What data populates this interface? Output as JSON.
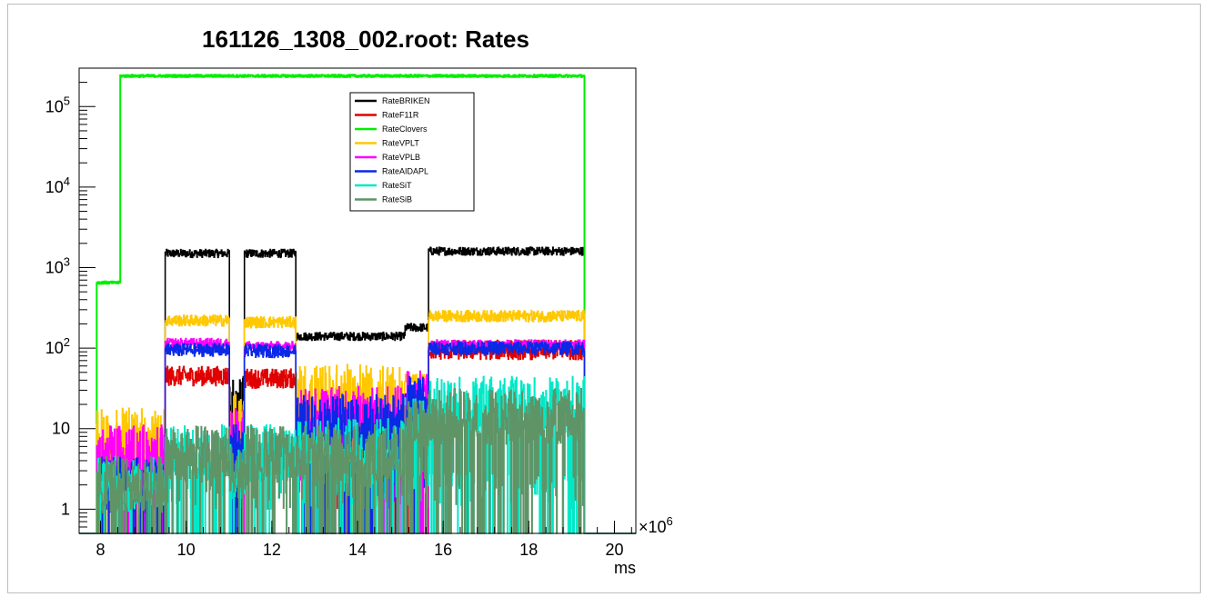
{
  "chart_data": {
    "type": "line",
    "title": "161126_1308_002.root: Rates",
    "xlabel": "ms",
    "x_multiplier_label": "×10",
    "x_multiplier_exp": "6",
    "xlim": [
      7.5,
      20.5
    ],
    "ylim": [
      0.5,
      300000
    ],
    "y_scale": "log",
    "x_ticks": [
      8,
      10,
      12,
      14,
      16,
      18,
      20
    ],
    "y_ticks": [
      {
        "value": 1,
        "base": "1",
        "exp": ""
      },
      {
        "value": 10,
        "base": "10",
        "exp": ""
      },
      {
        "value": 100,
        "base": "10",
        "exp": "2"
      },
      {
        "value": 1000,
        "base": "10",
        "exp": "3"
      },
      {
        "value": 10000,
        "base": "10",
        "exp": "4"
      },
      {
        "value": 100000,
        "base": "10",
        "exp": "5"
      }
    ],
    "legend_position": "top-center",
    "segments": [
      [
        7.5,
        7.9
      ],
      [
        7.9,
        8.45
      ],
      [
        8.45,
        9.5
      ],
      [
        9.5,
        11.0
      ],
      [
        11.0,
        11.35
      ],
      [
        11.35,
        12.55
      ],
      [
        12.55,
        15.1
      ],
      [
        15.1,
        15.65
      ],
      [
        15.65,
        19.3
      ],
      [
        19.3,
        20.5
      ]
    ],
    "series": [
      {
        "name": "RateBRIKEN",
        "color": "#000000",
        "levels": [
          0,
          0,
          0,
          1500,
          20,
          1500,
          140,
          180,
          1600,
          0
        ],
        "noise": 0.05
      },
      {
        "name": "RateF11R",
        "color": "#e00000",
        "levels": [
          0,
          3,
          3,
          45,
          5,
          42,
          10,
          15,
          95,
          0
        ],
        "noise": 0.12
      },
      {
        "name": "RateClovers",
        "color": "#00ee00",
        "levels": [
          0,
          650,
          240000,
          240000,
          240000,
          240000,
          240000,
          240000,
          240000,
          0
        ],
        "noise": 0.015
      },
      {
        "name": "RateVPLT",
        "color": "#ffc800",
        "levels": [
          0,
          8,
          8,
          220,
          12,
          210,
          28,
          40,
          250,
          0
        ],
        "noise": 0.07
      },
      {
        "name": "RateVPLB",
        "color": "#ff00ff",
        "levels": [
          0,
          5,
          5,
          115,
          8,
          105,
          15,
          25,
          110,
          0
        ],
        "noise": 0.06
      },
      {
        "name": "RateAIDAPL",
        "color": "#0a28e6",
        "levels": [
          0,
          2,
          2,
          95,
          5,
          92,
          12,
          20,
          100,
          0
        ],
        "noise": 0.08
      },
      {
        "name": "RateSiT",
        "color": "#00e8c8",
        "levels": [
          0,
          2,
          2,
          5,
          3,
          5,
          6,
          12,
          20,
          0
        ],
        "noise": 0.25
      },
      {
        "name": "RateSiB",
        "color": "#5f9467",
        "levels": [
          0,
          2,
          2,
          5,
          3,
          5,
          5,
          10,
          14,
          0
        ],
        "noise": 0.25
      }
    ]
  }
}
